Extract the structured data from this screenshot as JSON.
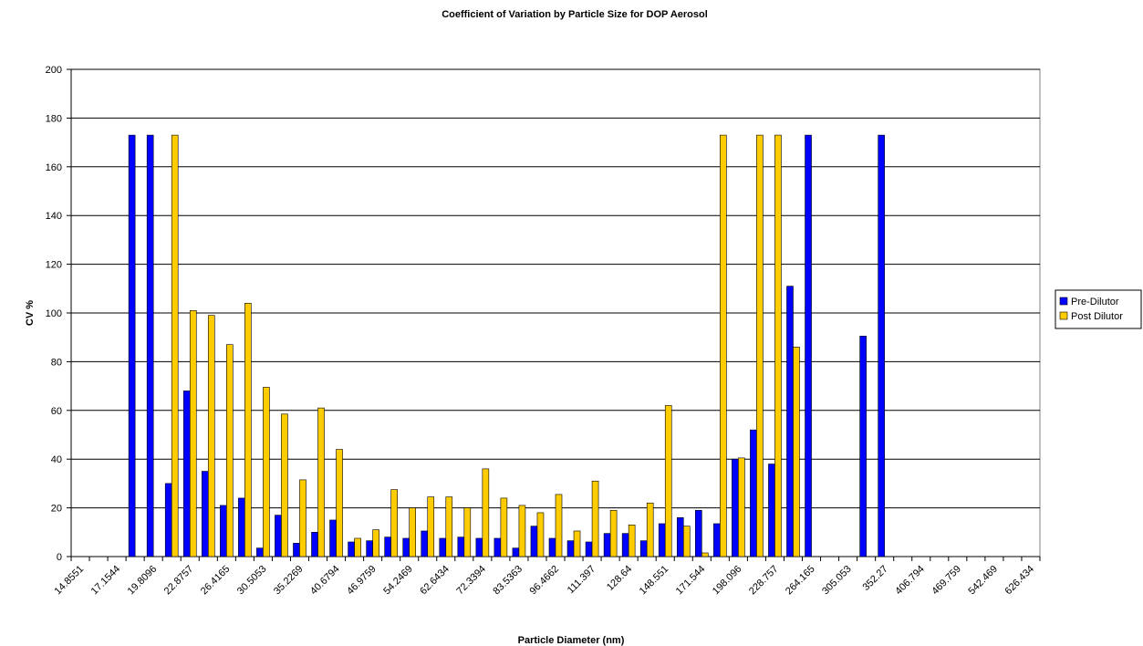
{
  "chart_data": {
    "type": "bar",
    "title": "Coefficient of Variation by Particle Size for DOP Aerosol",
    "x_label": "Particle Diameter (nm)",
    "y_label": "CV %",
    "categories": [
      "14.8551",
      null,
      "17.1544",
      null,
      "19.8096",
      null,
      "22.8757",
      null,
      "26.4165",
      null,
      "30.5053",
      null,
      "35.2269",
      null,
      "40.6794",
      null,
      "46.9759",
      null,
      "54.2469",
      null,
      "62.6434",
      null,
      "72.3394",
      null,
      "83.5363",
      null,
      "96.4662",
      null,
      "111.397",
      null,
      "128.64",
      null,
      "148.551",
      null,
      "171.544",
      null,
      "198.096",
      null,
      "228.757",
      null,
      "264.165",
      null,
      "305.053",
      null,
      "352.27",
      null,
      "406.794",
      null,
      "469.759",
      null,
      "542.469",
      null,
      "626.434"
    ],
    "series": [
      {
        "name": "Pre-Dilutor",
        "color": "#0000ff",
        "values": [
          null,
          null,
          null,
          173,
          173,
          30,
          68,
          35,
          21,
          24,
          3.5,
          17,
          5.5,
          10,
          15,
          6,
          6.5,
          8,
          7.5,
          10.5,
          7.5,
          8,
          7.5,
          7.5,
          3.5,
          12.5,
          7.5,
          6.5,
          6,
          9.5,
          9.5,
          6.5,
          13.5,
          16,
          19,
          13.5,
          40,
          52,
          38,
          111,
          173,
          null,
          null,
          90.5,
          173,
          null,
          null,
          null,
          null,
          null,
          null,
          null,
          null
        ]
      },
      {
        "name": "Post Dilutor",
        "color": "#ffcc00",
        "values": [
          null,
          null,
          null,
          null,
          null,
          173,
          101,
          99,
          87,
          104,
          69.5,
          58.5,
          31.5,
          61,
          44,
          7.5,
          11,
          27.5,
          20,
          24.5,
          24.5,
          20,
          36,
          24,
          21,
          18,
          25.5,
          10.5,
          31,
          19,
          13,
          22,
          62,
          12.5,
          1.5,
          173,
          40.5,
          173,
          173,
          86,
          null,
          null,
          null,
          null,
          null,
          null,
          null,
          null,
          null,
          null,
          null,
          null,
          null
        ]
      }
    ],
    "ylim": [
      0,
      200
    ],
    "yticks": [
      0,
      20,
      40,
      60,
      80,
      100,
      120,
      140,
      160,
      180,
      200
    ],
    "grid": true,
    "legend": "right"
  }
}
